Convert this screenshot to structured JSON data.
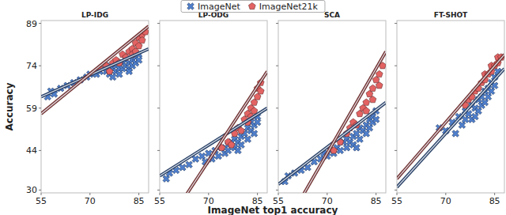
{
  "chart_data": [
    {
      "type": "scatter",
      "title": "LP-IDG",
      "ylabel": "Accuracy",
      "xlim": [
        55,
        88
      ],
      "ylim": [
        29,
        90
      ],
      "xticks": [
        55,
        70,
        85
      ],
      "yticks": [
        30,
        44,
        59,
        74,
        89
      ],
      "grid": false,
      "series": [
        {
          "name": "ImageNet",
          "color": "#4f7fcc",
          "marker": "x",
          "x": [
            57,
            58,
            59,
            61,
            63,
            65,
            67,
            69,
            70,
            72,
            73,
            74,
            75,
            76,
            76,
            77,
            78,
            78,
            79,
            80,
            80,
            81,
            81,
            82,
            82,
            83,
            83,
            84,
            84,
            85,
            85,
            79,
            77,
            82
          ],
          "y": [
            63,
            65,
            64,
            66,
            67,
            68,
            69,
            70,
            71,
            71,
            72,
            73,
            72,
            74,
            71,
            73,
            74,
            72,
            73,
            75,
            73,
            74,
            76,
            75,
            73,
            76,
            74,
            77,
            75,
            78,
            76,
            71,
            70,
            72
          ],
          "fit": {
            "x": [
              55,
              88
            ],
            "y": [
              63,
              80
            ]
          }
        },
        {
          "name": "ImageNet21k",
          "color": "#e36363",
          "marker": "pentagon",
          "x": [
            73,
            75,
            76,
            77,
            78,
            79,
            80,
            81,
            82,
            83,
            83,
            84,
            85,
            85,
            86,
            87,
            86,
            84
          ],
          "y": [
            73,
            74,
            72,
            75,
            76,
            75,
            78,
            77,
            79,
            80,
            78,
            82,
            81,
            84,
            85,
            86,
            83,
            79
          ],
          "fit": {
            "x": [
              55,
              88
            ],
            "y": [
              57,
              88
            ]
          }
        }
      ]
    },
    {
      "type": "scatter",
      "title": "LP-ODG",
      "xlabel": "ImageNet top1 accuracy",
      "xlim": [
        55,
        88
      ],
      "ylim": [
        29,
        90
      ],
      "xticks": [
        55,
        70,
        85
      ],
      "yticks": [
        30,
        44,
        59,
        74,
        89
      ],
      "grid": false,
      "tick_labels": "x",
      "series": [
        {
          "name": "ImageNet",
          "color": "#4f7fcc",
          "marker": "x",
          "x": [
            57,
            58,
            60,
            62,
            64,
            66,
            68,
            69,
            70,
            71,
            72,
            73,
            74,
            75,
            76,
            76,
            77,
            78,
            78,
            79,
            80,
            80,
            81,
            82,
            82,
            83,
            83,
            84,
            84,
            85,
            85,
            79
          ],
          "y": [
            34,
            36,
            37,
            38,
            39,
            41,
            42,
            40,
            43,
            41,
            44,
            42,
            45,
            43,
            46,
            44,
            47,
            45,
            48,
            47,
            49,
            46,
            50,
            48,
            52,
            51,
            54,
            53,
            50,
            56,
            54,
            44
          ],
          "fit": {
            "x": [
              55,
              88
            ],
            "y": [
              35,
              59
            ]
          }
        },
        {
          "name": "ImageNet21k",
          "color": "#e36363",
          "marker": "pentagon",
          "x": [
            74,
            76,
            77,
            78,
            79,
            80,
            81,
            82,
            82,
            83,
            84,
            84,
            85,
            85,
            86,
            86,
            83
          ],
          "y": [
            45,
            47,
            46,
            50,
            52,
            51,
            55,
            54,
            57,
            59,
            61,
            58,
            63,
            66,
            68,
            65,
            56
          ],
          "fit": {
            "x": [
              55,
              88
            ],
            "y": [
              14,
              72
            ]
          }
        }
      ]
    },
    {
      "type": "scatter",
      "title": "SCA",
      "xlim": [
        55,
        88
      ],
      "ylim": [
        29,
        90
      ],
      "xticks": [
        55,
        70,
        85
      ],
      "yticks": [
        30,
        44,
        59,
        74,
        89
      ],
      "grid": false,
      "tick_labels": "x",
      "series": [
        {
          "name": "ImageNet",
          "color": "#4f7fcc",
          "marker": "x",
          "x": [
            57,
            58,
            60,
            62,
            64,
            66,
            68,
            69,
            70,
            71,
            72,
            73,
            74,
            75,
            76,
            76,
            77,
            78,
            78,
            79,
            80,
            80,
            81,
            82,
            82,
            83,
            83,
            84,
            84,
            85,
            85,
            79
          ],
          "y": [
            33,
            35,
            36,
            37,
            38,
            40,
            41,
            43,
            42,
            44,
            43,
            45,
            44,
            47,
            45,
            48,
            47,
            49,
            46,
            50,
            48,
            52,
            51,
            53,
            50,
            55,
            52,
            56,
            54,
            58,
            55,
            45
          ],
          "fit": {
            "x": [
              55,
              88
            ],
            "y": [
              32,
              61
            ]
          }
        },
        {
          "name": "ImageNet21k",
          "color": "#e36363",
          "marker": "pentagon",
          "x": [
            72,
            74,
            76,
            77,
            78,
            79,
            80,
            81,
            82,
            82,
            83,
            84,
            84,
            85,
            86,
            86,
            87
          ],
          "y": [
            44,
            47,
            50,
            52,
            54,
            53,
            57,
            59,
            61,
            58,
            64,
            66,
            62,
            69,
            71,
            67,
            74
          ],
          "fit": {
            "x": [
              55,
              88
            ],
            "y": [
              13,
              79
            ]
          }
        }
      ]
    },
    {
      "type": "scatter",
      "title": "FT-SHOT",
      "xlim": [
        55,
        88
      ],
      "ylim": [
        29,
        90
      ],
      "xticks": [
        55,
        70,
        85
      ],
      "yticks": [
        30,
        44,
        59,
        74,
        89
      ],
      "grid": false,
      "tick_labels": "x",
      "series": [
        {
          "name": "ImageNet",
          "color": "#4f7fcc",
          "marker": "x",
          "x": [
            68,
            70,
            72,
            73,
            74,
            75,
            76,
            76,
            77,
            78,
            78,
            79,
            80,
            80,
            81,
            81,
            82,
            82,
            83,
            83,
            84,
            84,
            85,
            85,
            86,
            79
          ],
          "y": [
            52,
            51,
            54,
            50,
            56,
            53,
            58,
            55,
            57,
            60,
            55,
            59,
            62,
            58,
            63,
            60,
            65,
            61,
            66,
            63,
            68,
            65,
            70,
            67,
            72,
            56
          ],
          "fit": {
            "x": [
              55,
              88
            ],
            "y": [
              31,
              73
            ]
          }
        },
        {
          "name": "ImageNet21k",
          "color": "#e36363",
          "marker": "pentagon",
          "x": [
            76,
            77,
            78,
            79,
            80,
            81,
            82,
            82,
            83,
            84,
            84,
            85,
            86,
            86,
            87
          ],
          "y": [
            60,
            62,
            63,
            65,
            66,
            68,
            69,
            71,
            71,
            72,
            74,
            74,
            75,
            77,
            77
          ],
          "fit": {
            "x": [
              55,
              88
            ],
            "y": [
              34,
              78
            ]
          }
        }
      ]
    }
  ]
}
